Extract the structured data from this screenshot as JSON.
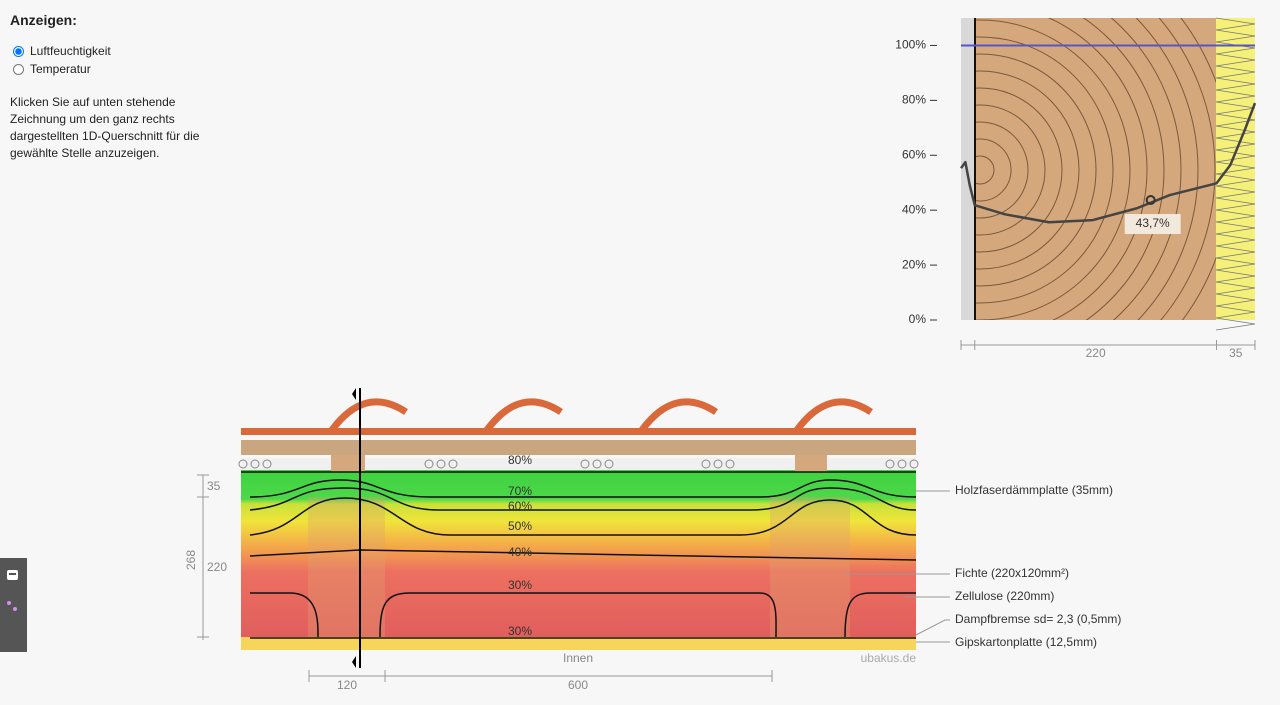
{
  "sidebar": {
    "heading": "Anzeigen:",
    "options": [
      "Luftfeuchtigkeit",
      "Temperatur"
    ],
    "selected": 0,
    "instructions": "Klicken Sie auf unten stehende Zeichnung um den ganz rechts dargestellten 1D-Querschnitt für die gewählte Stelle anzuzeigen."
  },
  "chart_data": {
    "type": "line",
    "x": [
      0,
      4,
      8,
      12.5,
      40,
      80,
      120,
      160,
      190,
      232.5,
      245,
      258,
      267.5
    ],
    "series": [
      {
        "color": "#444444",
        "values": [
          55.3,
          57.5,
          49,
          41.8,
          38.5,
          35.6,
          36.4,
          40.7,
          45.5,
          49.8,
          56.4,
          69,
          79
        ]
      }
    ],
    "xlim": [
      0,
      267.5
    ],
    "xticks": [
      0,
      12.5,
      232.5,
      267.5
    ],
    "dimension_labels": [
      220,
      35
    ],
    "ylim": [
      0,
      110
    ],
    "yticks": [
      {
        "value": 0,
        "label": "0%"
      },
      {
        "value": 20,
        "label": "20%"
      },
      {
        "value": 40,
        "label": "40%"
      },
      {
        "value": 60,
        "label": "60%"
      },
      {
        "value": 80,
        "label": "80%"
      },
      {
        "value": 100,
        "label": "100%"
      }
    ],
    "reference_line": {
      "value": 100,
      "color": "#5555d0"
    },
    "annotation": {
      "x": 172.6,
      "value": 43.7,
      "label": "43,7%"
    }
  },
  "section": {
    "contours": [
      "80%",
      "70%",
      "60%",
      "50%",
      "40%",
      "30%",
      "30%"
    ],
    "layers": [
      "Holzfaserdämmplatte (35mm)",
      "Fichte (220x120mm²)",
      "Zellulose (220mm)",
      "Dampfbremse sd= 2,3 (0,5mm)",
      "Gipskartonplatte (12,5mm)"
    ],
    "vertical_dimensions": [
      35,
      220,
      268
    ],
    "horizontal_dimensions": [
      120,
      600
    ],
    "inside_label": "Innen",
    "watermark": "ubakus.de"
  }
}
